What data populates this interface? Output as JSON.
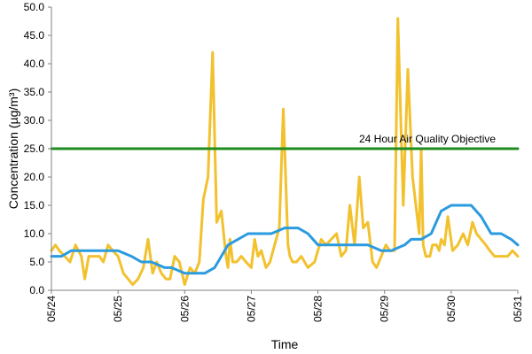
{
  "chart_data": {
    "type": "line",
    "xlabel": "Time",
    "ylabel": "Concentration (µg/m³)",
    "ylim": [
      0,
      50
    ],
    "yticks": [
      "0.0",
      "5.0",
      "10.0",
      "15.0",
      "20.0",
      "25.0",
      "30.0",
      "35.0",
      "40.0",
      "45.0",
      "50.0"
    ],
    "xticks": [
      "05/24",
      "05/25",
      "05/26",
      "05/27",
      "05/28",
      "05/29",
      "05/30",
      "05/31"
    ],
    "xlim_days": [
      0,
      7
    ],
    "grid": false,
    "annotation": {
      "text": "24 Hour Air Quality Objective",
      "y": 25
    },
    "series": [
      {
        "color": "#F2C12E",
        "x": [
          0,
          0.06,
          0.12,
          0.2,
          0.28,
          0.36,
          0.45,
          0.5,
          0.56,
          0.65,
          0.72,
          0.78,
          0.85,
          0.92,
          1.0,
          1.08,
          1.15,
          1.22,
          1.3,
          1.38,
          1.45,
          1.52,
          1.58,
          1.65,
          1.72,
          1.78,
          1.85,
          1.92,
          2.0,
          2.08,
          2.15,
          2.22,
          2.28,
          2.35,
          2.42,
          2.48,
          2.55,
          2.62,
          2.65,
          2.68,
          2.72,
          2.78,
          2.85,
          2.92,
          3.0,
          3.05,
          3.1,
          3.15,
          3.22,
          3.28,
          3.35,
          3.42,
          3.48,
          3.55,
          3.58,
          3.62,
          3.68,
          3.75,
          3.85,
          3.95,
          4.05,
          4.12,
          4.2,
          4.28,
          4.35,
          4.42,
          4.48,
          4.55,
          4.62,
          4.68,
          4.75,
          4.82,
          4.88,
          4.95,
          5.02,
          5.08,
          5.15,
          5.2,
          5.28,
          5.35,
          5.42,
          5.48,
          5.52,
          5.55,
          5.58,
          5.62,
          5.68,
          5.72,
          5.78,
          5.82,
          5.85,
          5.9,
          5.95,
          6.02,
          6.1,
          6.18,
          6.25,
          6.32,
          6.38,
          6.45,
          6.52,
          6.58,
          6.65,
          6.72,
          6.78,
          6.85,
          6.92,
          7.0
        ],
        "values": [
          7,
          8,
          7,
          6,
          5,
          8,
          6,
          2,
          6,
          6,
          6,
          5,
          8,
          7,
          6,
          3,
          2,
          1,
          2,
          4,
          9,
          3,
          5,
          3,
          2,
          2,
          6,
          5,
          1,
          4,
          3,
          5,
          16,
          20,
          42,
          12,
          14,
          6,
          4,
          9,
          5,
          5,
          6,
          5,
          4,
          9,
          6,
          7,
          4,
          5,
          8,
          11,
          32,
          8,
          6,
          5,
          5,
          6,
          4,
          5,
          9,
          8,
          9,
          10,
          6,
          7,
          15,
          8,
          20,
          11,
          12,
          5,
          4,
          6,
          8,
          7,
          7,
          48,
          15,
          39,
          20,
          14,
          10,
          25,
          8,
          6,
          6,
          8,
          8,
          7,
          9,
          8,
          13,
          7,
          8,
          10,
          8,
          12,
          10,
          9,
          8,
          7,
          6,
          6,
          6,
          6,
          7,
          6
        ]
      },
      {
        "color": "#2A9BDF",
        "x": [
          0,
          0.15,
          0.3,
          0.5,
          1.0,
          1.2,
          1.35,
          1.5,
          1.7,
          1.8,
          2.0,
          2.3,
          2.45,
          2.55,
          2.65,
          2.8,
          2.95,
          3.0,
          3.1,
          3.3,
          3.5,
          3.6,
          3.7,
          3.85,
          4.0,
          4.2,
          4.45,
          4.6,
          4.75,
          4.95,
          5.1,
          5.3,
          5.4,
          5.55,
          5.7,
          5.85,
          6.0,
          6.2,
          6.3,
          6.45,
          6.6,
          6.75,
          6.9,
          7.0
        ],
        "values": [
          6,
          6,
          7,
          7,
          7,
          6,
          5,
          5,
          4,
          4,
          3,
          3,
          4,
          6,
          8,
          9,
          10,
          10,
          10,
          10,
          11,
          11,
          11,
          10,
          8,
          8,
          8,
          8,
          8,
          7,
          7,
          8,
          9,
          9,
          10,
          14,
          15,
          15,
          15,
          13,
          10,
          10,
          9,
          8
        ]
      },
      {
        "color": "#1E8C1E",
        "x": [
          0,
          7
        ],
        "values": [
          25,
          25
        ]
      }
    ]
  }
}
